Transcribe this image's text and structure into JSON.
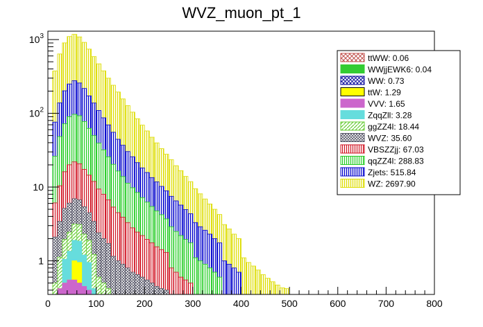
{
  "chart_data": {
    "type": "histogram-stacked",
    "title": "WVZ_muon_pt_1",
    "xlabel": "",
    "ylabel": "",
    "xlim": [
      0,
      800
    ],
    "ylim": [
      0.35,
      1300
    ],
    "yscale": "log",
    "grid": false,
    "legend_position": "top-right",
    "bin_width": 10,
    "bin_start": 10,
    "x_ticks": [
      {
        "value": 0,
        "label": "0"
      },
      {
        "value": 100,
        "label": "100"
      },
      {
        "value": 200,
        "label": "200"
      },
      {
        "value": 300,
        "label": "300"
      },
      {
        "value": 400,
        "label": "400"
      },
      {
        "value": 500,
        "label": "500"
      },
      {
        "value": 600,
        "label": "600"
      },
      {
        "value": 700,
        "label": "700"
      },
      {
        "value": 800,
        "label": "800"
      }
    ],
    "y_ticks": [
      {
        "value": 1,
        "base": "1",
        "exp": ""
      },
      {
        "value": 10,
        "base": "10",
        "exp": ""
      },
      {
        "value": 100,
        "base": "10",
        "exp": "2"
      },
      {
        "value": 1000,
        "base": "10",
        "exp": "3"
      }
    ],
    "legend": [
      {
        "label": "ttWW: 0.06",
        "color": "#c0504d",
        "pattern": "cross"
      },
      {
        "label": "WWjjEWK6: 0.04",
        "color": "#33cc33",
        "pattern": "solid"
      },
      {
        "label": "WW: 0.73",
        "color": "#1010a0",
        "pattern": "cross"
      },
      {
        "label": "ttW: 1.29",
        "color": "#ffff00",
        "pattern": "solid"
      },
      {
        "label": "VVV: 1.65",
        "color": "#cc66cc",
        "pattern": "solid"
      },
      {
        "label": "ZqqZll: 3.28",
        "color": "#66dddd",
        "pattern": "solid"
      },
      {
        "label": "ggZZ4l: 18.44",
        "color": "#66cc33",
        "pattern": "diag"
      },
      {
        "label": "WVZ: 35.60",
        "color": "#555566",
        "pattern": "diag2"
      },
      {
        "label": "VBSZZjj: 67.03",
        "color": "#d01020",
        "pattern": "vert"
      },
      {
        "label": "qqZZ4l: 288.83",
        "color": "#22cc22",
        "pattern": "vert"
      },
      {
        "label": "Zjets: 515.84",
        "color": "#0000cc",
        "pattern": "vert"
      },
      {
        "label": "WZ: 2697.90",
        "color": "#dddd00",
        "pattern": "vert"
      }
    ],
    "series": [
      {
        "name": "VVV",
        "color": "#cc66cc",
        "pattern": "solid",
        "values": [
          0,
          0.42,
          0.5,
          0.55,
          0.55,
          0.5,
          0.45,
          0.4
        ]
      },
      {
        "name": "ttW",
        "color": "#ffff00",
        "pattern": "solid",
        "values": [
          0,
          0,
          0,
          0,
          0.45,
          0.45
        ]
      },
      {
        "name": "ZqqZll",
        "color": "#66dddd",
        "pattern": "solid",
        "values": [
          0,
          0,
          0.55,
          0.8,
          0.9,
          0.9,
          0.75,
          0.55,
          0.42
        ]
      },
      {
        "name": "ggZZ4l",
        "color": "#66cc33",
        "pattern": "diag",
        "values": [
          0.5,
          0.7,
          0.9,
          1.1,
          1.25,
          1.25,
          1.1,
          0.95,
          0.8,
          0.6,
          0.5,
          0.42
        ]
      },
      {
        "name": "WVZ",
        "color": "#555566",
        "pattern": "diag2",
        "values": [
          1.6,
          2.3,
          3.2,
          3.6,
          3.8,
          3.6,
          3.1,
          2.6,
          2.2,
          1.8,
          1.5,
          1.3,
          1.15,
          1.0,
          0.9,
          0.8,
          0.7,
          0.65,
          0.6,
          0.55,
          0.5,
          0.45,
          0.42,
          0.4
        ]
      },
      {
        "name": "VBSZZjj",
        "color": "#d01020",
        "pattern": "vert",
        "values": [
          4,
          7,
          11,
          14,
          15,
          14,
          12,
          10,
          8.5,
          7,
          6,
          5,
          4.2,
          3.5,
          3,
          2.5,
          2.1,
          1.8,
          1.6,
          1.4,
          1.25,
          1.1,
          1.0,
          0.9,
          0.8,
          0.7,
          0.6,
          0.55,
          0.5
        ]
      },
      {
        "name": "qqZZ4l",
        "color": "#22cc22",
        "pattern": "vert",
        "values": [
          20,
          38,
          56,
          70,
          75,
          72,
          60,
          48,
          38,
          30,
          24,
          19,
          15,
          12,
          10,
          8,
          7,
          6,
          5,
          4.3,
          3.7,
          3.2,
          2.8,
          2.4,
          2.1,
          1.8,
          1.6,
          1.4,
          1.25,
          1.1,
          1.0,
          0.9,
          0.8,
          0.7,
          0.6
        ]
      },
      {
        "name": "Zjets",
        "color": "#0000cc",
        "pattern": "vert",
        "values": [
          50,
          90,
          130,
          160,
          180,
          165,
          140,
          110,
          88,
          70,
          55,
          44,
          35,
          28,
          23,
          19,
          16,
          13,
          11,
          9.5,
          8,
          7,
          6,
          5.2,
          4.6,
          4,
          3.5,
          3,
          2.6,
          2.2,
          1.9,
          1.7,
          1.5,
          1.3,
          1.15,
          1.0,
          0.9,
          0.8,
          0.7
        ]
      },
      {
        "name": "WZ",
        "color": "#dddd00",
        "pattern": "vert",
        "values": [
          300,
          500,
          700,
          850,
          900,
          830,
          700,
          570,
          450,
          360,
          290,
          230,
          185,
          150,
          120,
          97,
          78,
          63,
          51,
          42,
          34,
          28,
          23,
          19,
          16,
          13,
          11,
          9,
          7.5,
          6.2,
          5.2,
          4.3,
          3.6,
          3,
          2.5,
          2.1,
          1.8,
          1.5,
          1.3,
          1.1,
          0.95,
          0.85,
          0.75,
          0.65,
          0.58,
          0.52,
          0.47,
          0.43,
          0.42
        ]
      }
    ]
  }
}
